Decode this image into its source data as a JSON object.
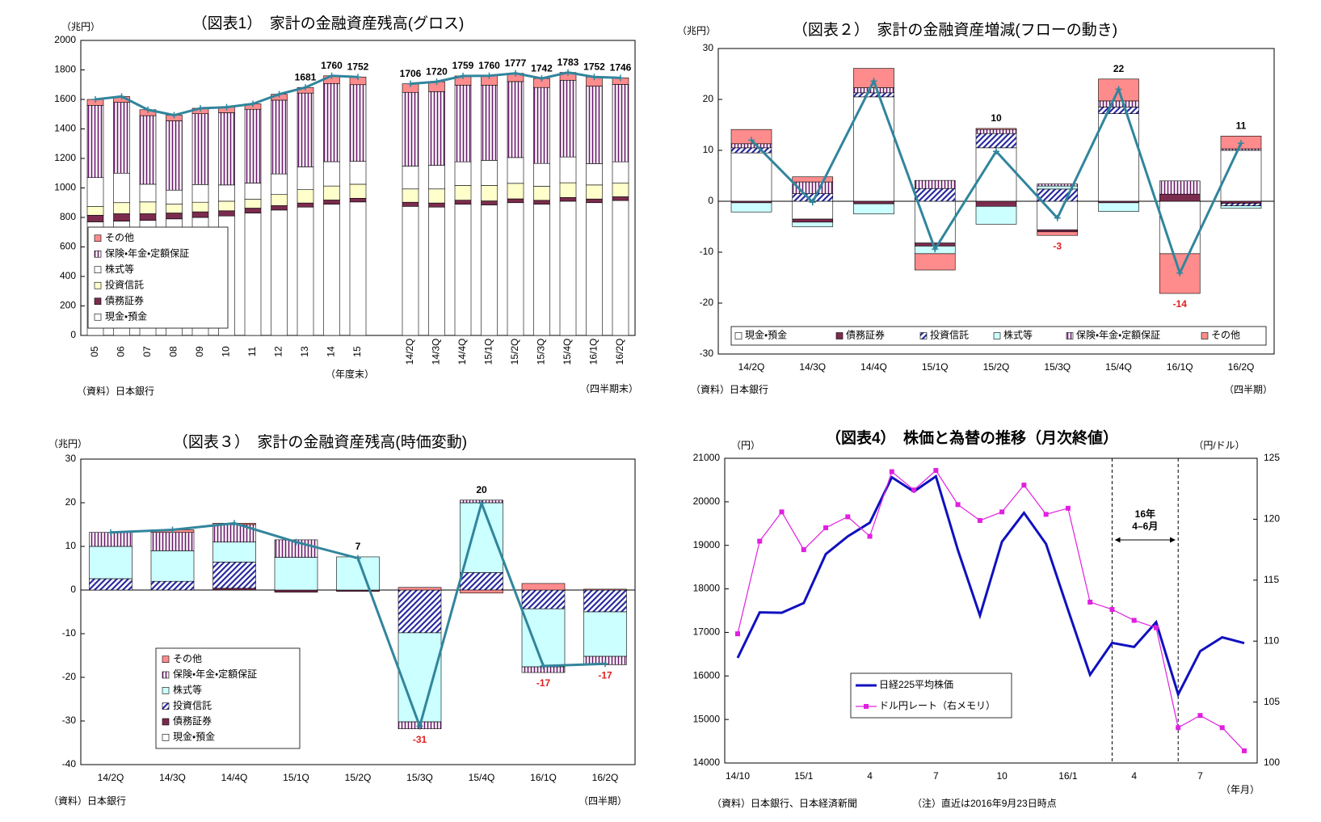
{
  "chart_data": [
    {
      "type": "bar",
      "stacked": true,
      "title": "（図表1）　家計の金融資産残高(グロス)",
      "y_label": "（兆円）",
      "source": "（資料）日本銀行",
      "notes": [
        "（年度末）",
        "（四半期末）"
      ],
      "categories": [
        "05",
        "06",
        "07",
        "08",
        "09",
        "10",
        "11",
        "12",
        "13",
        "14",
        "15",
        null,
        "14/2Q",
        "14/3Q",
        "14/4Q",
        "15/1Q",
        "15/2Q",
        "15/3Q",
        "15/4Q",
        "16/1Q",
        "16/2Q"
      ],
      "ylim": [
        0,
        2000
      ],
      "yticks": [
        0,
        200,
        400,
        600,
        800,
        1000,
        1200,
        1400,
        1600,
        1800,
        2000
      ],
      "series": [
        {
          "name": "現金・預金",
          "color": "#ffffff",
          "values": [
            770,
            775,
            780,
            790,
            800,
            810,
            830,
            850,
            870,
            890,
            905,
            null,
            875,
            870,
            890,
            885,
            900,
            890,
            910,
            900,
            915
          ]
        },
        {
          "name": "債務証券",
          "color": "#7b2c4e",
          "values": [
            45,
            50,
            45,
            40,
            38,
            35,
            33,
            30,
            28,
            28,
            25,
            null,
            28,
            28,
            27,
            27,
            26,
            26,
            25,
            25,
            25
          ]
        },
        {
          "name": "投資信託",
          "color": "#ffffcc",
          "values": [
            60,
            75,
            80,
            60,
            65,
            65,
            60,
            75,
            90,
            95,
            95,
            null,
            90,
            95,
            100,
            105,
            105,
            95,
            100,
            95,
            92
          ]
        },
        {
          "name": "株式等",
          "color": "#ffffff",
          "values": [
            195,
            200,
            120,
            95,
            120,
            110,
            110,
            140,
            155,
            165,
            155,
            null,
            155,
            160,
            160,
            170,
            175,
            155,
            175,
            145,
            145
          ]
        },
        {
          "name": "保険・年金・定額保証",
          "color": "#6a1a6a",
          "hatch": "vertical",
          "values": [
            490,
            480,
            465,
            470,
            480,
            490,
            500,
            500,
            500,
            530,
            520,
            null,
            500,
            500,
            520,
            510,
            515,
            515,
            520,
            525,
            525
          ]
        },
        {
          "name": "その他",
          "color": "#ff8c8c",
          "values": [
            40,
            40,
            40,
            38,
            37,
            37,
            37,
            40,
            38,
            52,
            52,
            null,
            58,
            67,
            62,
            63,
            56,
            61,
            53,
            62,
            44
          ]
        }
      ],
      "line": {
        "color": "#31859c",
        "values": [
          1600,
          1620,
          1530,
          1493,
          1540,
          1547,
          1570,
          1635,
          1681,
          1760,
          1752,
          null,
          1706,
          1720,
          1759,
          1760,
          1777,
          1742,
          1783,
          1752,
          1746
        ]
      },
      "labels": [
        null,
        null,
        null,
        null,
        null,
        null,
        null,
        null,
        1681,
        1760,
        1752,
        null,
        1706,
        1720,
        1759,
        1760,
        1777,
        1742,
        1783,
        1752,
        1746
      ],
      "legend": "lower-left"
    },
    {
      "type": "bar",
      "stacked": true,
      "title": "（図表２）　家計の金融資産増減(フローの動き)",
      "y_label": "（兆円）",
      "x_label": "（四半期）",
      "source": "（資料）日本銀行",
      "categories": [
        "14/2Q",
        "14/3Q",
        "14/4Q",
        "15/1Q",
        "15/2Q",
        "15/3Q",
        "15/4Q",
        "16/1Q",
        "16/2Q"
      ],
      "ylim": [
        -30,
        30
      ],
      "yticks": [
        -30,
        -20,
        -10,
        0,
        10,
        20,
        30
      ],
      "series": [
        {
          "name": "現金・預金",
          "color": "#ffffff",
          "values": [
            9.5,
            -3.5,
            20.5,
            -8.2,
            10.5,
            -5.6,
            17.2,
            -10.3,
            10
          ]
        },
        {
          "name": "債務証券",
          "color": "#7b2c4e",
          "values": [
            -0.3,
            -0.6,
            -0.5,
            -0.6,
            -1.0,
            -0.4,
            -0.3,
            1.4,
            -0.4
          ]
        },
        {
          "name": "投資信託",
          "color": "#2a2aa0",
          "hatch": "diagonal",
          "values": [
            1.0,
            1.5,
            0.8,
            2.5,
            2.8,
            2.4,
            1.3,
            0,
            -0.5
          ]
        },
        {
          "name": "株式等",
          "color": "#ccffff",
          "values": [
            -1.8,
            -0.9,
            -2.0,
            -1.5,
            -3.5,
            0.6,
            -1.7,
            0,
            -0.5
          ]
        },
        {
          "name": "保険・年金・定額保証",
          "color": "#6a1a6a",
          "hatch": "vertical",
          "values": [
            0.8,
            2.3,
            1.0,
            1.6,
            0.8,
            0.4,
            1.2,
            2.6,
            0.3
          ]
        },
        {
          "name": "その他",
          "color": "#ff8c8c",
          "values": [
            2.8,
            1.0,
            3.8,
            -3.2,
            0.2,
            -0.7,
            4.3,
            -7.8,
            2.5
          ]
        }
      ],
      "line": {
        "color": "#31859c",
        "values": [
          12.0,
          -0.2,
          23.6,
          -9.4,
          9.8,
          -3.3,
          22.0,
          -14.1,
          11.4
        ]
      },
      "labels": [
        null,
        null,
        null,
        null,
        10,
        -3,
        22,
        -14,
        11
      ],
      "legend": "bottom"
    },
    {
      "type": "bar",
      "stacked": true,
      "title": "（図表３）　家計の金融資産残高(時価変動)",
      "y_label": "（兆円）",
      "x_label": "（四半期）",
      "source": "（資料）日本銀行",
      "categories": [
        "14/2Q",
        "14/3Q",
        "14/4Q",
        "15/1Q",
        "15/2Q",
        "15/3Q",
        "15/4Q",
        "16/1Q",
        "16/2Q"
      ],
      "ylim": [
        -40,
        30
      ],
      "yticks": [
        -40,
        -30,
        -20,
        -10,
        0,
        10,
        20,
        30
      ],
      "series": [
        {
          "name": "現金・預金",
          "color": "#ffffff",
          "values": [
            0,
            0,
            0,
            0,
            0,
            0,
            0,
            0,
            0
          ]
        },
        {
          "name": "債務証券",
          "color": "#7b2c4e",
          "values": [
            0,
            0,
            0.4,
            -0.5,
            -0.3,
            0,
            0,
            0,
            0
          ]
        },
        {
          "name": "投資信託",
          "color": "#2a2aa0",
          "hatch": "diagonal",
          "values": [
            2.6,
            2.0,
            6.0,
            0,
            0,
            -9.8,
            4.0,
            -4.3,
            -5.0
          ]
        },
        {
          "name": "株式等",
          "color": "#ccffff",
          "values": [
            7.4,
            7.0,
            4.6,
            7.5,
            7.6,
            -20.4,
            16.0,
            -13.3,
            -10.2
          ]
        },
        {
          "name": "保険・年金・定額保証",
          "color": "#6a1a6a",
          "hatch": "vertical",
          "values": [
            3.2,
            4.2,
            4.0,
            4.0,
            0,
            -1.6,
            0.6,
            -1.3,
            -1.9
          ]
        },
        {
          "name": "その他",
          "color": "#ff8c8c",
          "values": [
            0,
            0.6,
            0.3,
            0,
            0,
            0.6,
            -0.7,
            1.5,
            0.2
          ]
        }
      ],
      "line": {
        "color": "#31859c",
        "values": [
          13.2,
          13.8,
          15.3,
          11.0,
          7.3,
          -31.2,
          19.9,
          -17.4,
          -16.9
        ]
      },
      "labels": [
        null,
        null,
        null,
        null,
        7,
        -31,
        20,
        -17,
        -17
      ],
      "legend": "lower-left"
    },
    {
      "type": "line",
      "title": "（図表4）　株価と為替の推移（月次終値）",
      "y_label": "（円）",
      "y2_label": "（円/ドル）",
      "x_label": "（年月）",
      "source": "（資料）日本銀行、日本経済新聞",
      "note": "（注）直近は2016年9月23日時点",
      "categories": [
        "14/10",
        null,
        null,
        "15/1",
        null,
        null,
        "4",
        null,
        null,
        "7",
        null,
        null,
        "10",
        null,
        null,
        "16/1",
        null,
        null,
        "4",
        null,
        null,
        "7",
        null,
        null
      ],
      "ylim": [
        14000,
        21000
      ],
      "yticks": [
        14000,
        15000,
        16000,
        17000,
        18000,
        19000,
        20000,
        21000
      ],
      "y2lim": [
        100,
        125
      ],
      "y2ticks": [
        100,
        105,
        110,
        115,
        120,
        125
      ],
      "series": [
        {
          "name": "日経225平均株価",
          "color": "#1010c0",
          "values": [
            16414,
            17460,
            17451,
            17674,
            18798,
            19207,
            19520,
            20563,
            20236,
            20585,
            18890,
            17388,
            19083,
            19747,
            19034,
            17518,
            16027,
            16759,
            16666,
            17235,
            15576,
            16569,
            16887,
            16754
          ]
        },
        {
          "name": "ドル円レート（右メモリ）",
          "color": "#e020e0",
          "axis": "y2",
          "marker": "square",
          "values": [
            110.6,
            118.2,
            120.6,
            117.5,
            119.3,
            120.2,
            118.6,
            123.9,
            122.4,
            124.0,
            121.2,
            119.9,
            120.6,
            122.8,
            120.4,
            120.9,
            113.2,
            112.6,
            111.7,
            111.1,
            102.9,
            103.9,
            102.9,
            101.0
          ]
        }
      ],
      "annotation": {
        "lines": [
          "16年",
          "4–6月"
        ],
        "from": 17,
        "to": 20
      },
      "legend": "lower-center"
    }
  ]
}
